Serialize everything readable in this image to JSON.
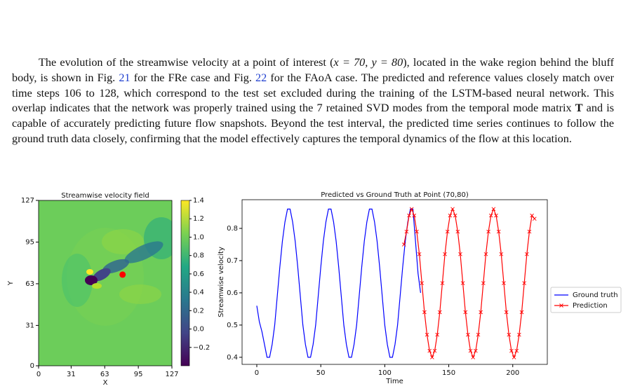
{
  "paragraph": [
    "The evolution of the streamwise velocity at a point of interest (",
    "x = 70, y = 80",
    "), located in the wake region behind the bluff body, is shown in Fig. ",
    "21",
    " for the FRe case and Fig. ",
    "22",
    " for the FAoA case. The predicted and reference values closely match over time steps 106 to 128, which correspond to the test set excluded during the training of the LSTM-based neural network. This overlap indicates that the network was properly trained using the 7 retained SVD modes from the temporal mode matrix ",
    "T",
    " and is capable of accurately predicting future flow snapshots. Beyond the test interval, the predicted time series continues to follow the ground truth data closely, confirming that the model effectively captures the temporal dynamics of the flow at this location."
  ],
  "chart_data": [
    {
      "type": "heatmap",
      "title": "Streamwise velocity field",
      "xlabel": "X",
      "ylabel": "Y",
      "xlim": [
        0,
        127
      ],
      "ylim": [
        0,
        127
      ],
      "xticks": [
        0,
        31,
        63,
        95,
        127
      ],
      "yticks": [
        0,
        31,
        63,
        95,
        127
      ],
      "colormap": [
        "#440154",
        "#414487",
        "#2a788e",
        "#22a884",
        "#7ad151",
        "#fde725"
      ],
      "clim": [
        -0.4,
        1.4
      ],
      "cticks": [
        {
          "value": -0.2,
          "label": "−0.2"
        },
        {
          "value": 0,
          "label": "0.0"
        },
        0.2,
        0.4,
        0.6,
        0.8,
        {
          "value": 1,
          "label": "1.0"
        },
        1.2,
        1.4
      ],
      "point": {
        "x": 80,
        "y": 70,
        "color": "#ff0000"
      }
    },
    {
      "type": "line",
      "title": "Predicted vs Ground Truth at Point (70,80)",
      "xlabel": "Time",
      "ylabel": "Streamwise velocity",
      "xlim": [
        -11.5,
        227
      ],
      "ylim": [
        0.378,
        0.889
      ],
      "xticks": [
        0,
        50,
        100,
        150,
        200
      ],
      "yticks": [
        0.4,
        0.5,
        0.6,
        0.7,
        0.8
      ],
      "legend": "outside-right",
      "series": [
        {
          "name": "Ground truth",
          "color": "#0000ff",
          "marker": null,
          "x": [
            0,
            2,
            4,
            6,
            8,
            10,
            12,
            14,
            16,
            18,
            20,
            22,
            24,
            26,
            28,
            30,
            32,
            34,
            36,
            38,
            40,
            42,
            44,
            46,
            48,
            50,
            52,
            54,
            56,
            58,
            60,
            62,
            64,
            66,
            68,
            70,
            72,
            74,
            76,
            78,
            80,
            82,
            84,
            86,
            88,
            90,
            92,
            94,
            96,
            98,
            100,
            102,
            104,
            106,
            108,
            110,
            112,
            114,
            116,
            118,
            120,
            122,
            124,
            126,
            128
          ],
          "values": [
            0.56,
            0.51,
            0.48,
            0.44,
            0.4,
            0.4,
            0.44,
            0.5,
            0.59,
            0.68,
            0.76,
            0.82,
            0.86,
            0.86,
            0.82,
            0.76,
            0.68,
            0.59,
            0.5,
            0.44,
            0.4,
            0.4,
            0.44,
            0.5,
            0.59,
            0.68,
            0.76,
            0.82,
            0.86,
            0.86,
            0.82,
            0.76,
            0.68,
            0.59,
            0.5,
            0.44,
            0.4,
            0.4,
            0.44,
            0.5,
            0.59,
            0.68,
            0.76,
            0.82,
            0.86,
            0.86,
            0.82,
            0.76,
            0.68,
            0.59,
            0.5,
            0.44,
            0.4,
            0.4,
            0.44,
            0.5,
            0.59,
            0.68,
            0.76,
            0.82,
            0.86,
            0.86,
            0.76,
            0.66,
            0.6
          ]
        },
        {
          "name": "Prediction",
          "color": "#ff0000",
          "marker": "x",
          "x": [
            115,
            117,
            119,
            121,
            123,
            125,
            127,
            129,
            131,
            133,
            135,
            137,
            139,
            141,
            143,
            145,
            147,
            149,
            151,
            153,
            155,
            157,
            159,
            161,
            163,
            165,
            167,
            169,
            171,
            173,
            175,
            177,
            179,
            181,
            183,
            185,
            187,
            189,
            191,
            193,
            195,
            197,
            199,
            201,
            203,
            205,
            207,
            209,
            211,
            213,
            215,
            217
          ],
          "values": [
            0.75,
            0.79,
            0.84,
            0.86,
            0.84,
            0.79,
            0.72,
            0.63,
            0.54,
            0.47,
            0.42,
            0.4,
            0.42,
            0.47,
            0.54,
            0.63,
            0.72,
            0.79,
            0.84,
            0.86,
            0.84,
            0.79,
            0.72,
            0.63,
            0.54,
            0.47,
            0.42,
            0.4,
            0.42,
            0.47,
            0.54,
            0.63,
            0.72,
            0.79,
            0.84,
            0.86,
            0.84,
            0.79,
            0.72,
            0.63,
            0.54,
            0.47,
            0.42,
            0.4,
            0.42,
            0.47,
            0.54,
            0.63,
            0.72,
            0.79,
            0.84,
            0.83
          ]
        }
      ]
    }
  ]
}
